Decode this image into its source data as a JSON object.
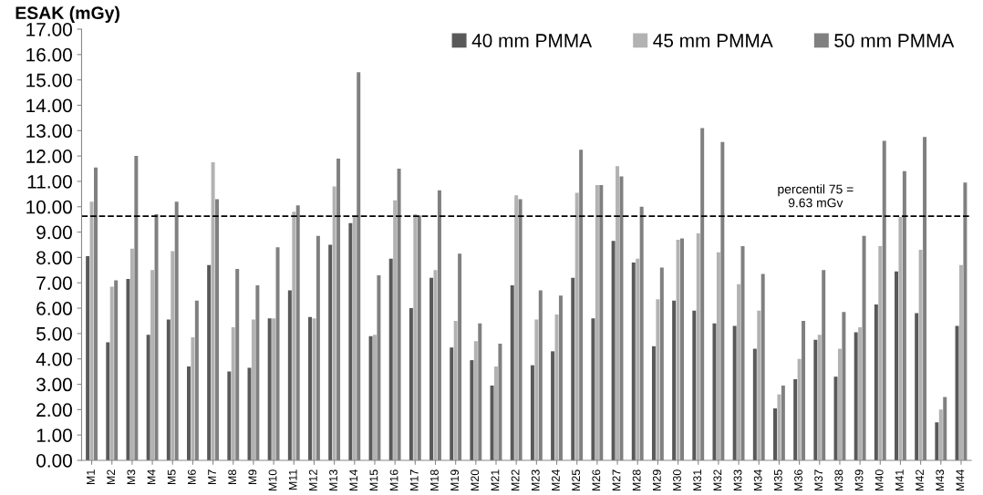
{
  "chart_data": {
    "type": "bar",
    "ylabel": "ESAK (mGy)",
    "categories": [
      "M1",
      "M2",
      "M3",
      "M4",
      "M5",
      "M6",
      "M7",
      "M8",
      "M9",
      "M10",
      "M11",
      "M12",
      "M13",
      "M14",
      "M15",
      "M16",
      "M17",
      "M18",
      "M19",
      "M20",
      "M21",
      "M22",
      "M23",
      "M24",
      "M25",
      "M26",
      "M27",
      "M28",
      "M29",
      "M30",
      "M31",
      "M32",
      "M33",
      "M34",
      "M35",
      "M36",
      "M37",
      "M38",
      "M39",
      "M40",
      "M41",
      "M42",
      "M43",
      "M44"
    ],
    "series": [
      {
        "name": "40 mm PMMA",
        "color": "#595959",
        "values": [
          8.05,
          4.65,
          7.15,
          4.95,
          5.55,
          3.7,
          7.7,
          3.5,
          3.65,
          5.6,
          6.7,
          5.65,
          8.5,
          9.35,
          4.9,
          7.95,
          6.0,
          7.2,
          4.45,
          3.95,
          2.95,
          6.9,
          3.75,
          4.3,
          7.2,
          5.6,
          8.65,
          7.8,
          4.5,
          6.3,
          5.9,
          5.4,
          5.3,
          4.4,
          2.05,
          3.2,
          4.75,
          3.3,
          5.05,
          6.15,
          7.45,
          5.8,
          1.5,
          5.3
        ]
      },
      {
        "name": "45 mm PMMA",
        "color": "#b2b2b2",
        "values": [
          10.2,
          6.85,
          8.35,
          7.5,
          8.25,
          4.85,
          11.75,
          5.25,
          5.55,
          5.6,
          9.8,
          5.6,
          10.8,
          9.6,
          4.95,
          10.25,
          9.7,
          7.5,
          5.5,
          4.7,
          3.7,
          10.45,
          5.55,
          5.75,
          10.55,
          10.85,
          11.6,
          7.95,
          6.35,
          8.7,
          8.95,
          8.2,
          6.95,
          5.9,
          2.6,
          4.0,
          4.95,
          4.4,
          5.25,
          8.45,
          9.6,
          8.3,
          2.0,
          7.7
        ]
      },
      {
        "name": "50 mm PMMA",
        "color": "#808080",
        "values": [
          11.55,
          7.1,
          12.0,
          9.7,
          10.2,
          6.3,
          10.3,
          7.55,
          6.9,
          8.4,
          10.05,
          8.85,
          11.9,
          15.3,
          7.3,
          11.5,
          9.65,
          10.65,
          8.15,
          5.4,
          4.6,
          10.3,
          6.7,
          6.5,
          12.25,
          10.85,
          11.2,
          10.0,
          7.6,
          8.75,
          13.1,
          12.55,
          8.45,
          7.35,
          2.95,
          5.5,
          7.5,
          5.85,
          8.85,
          12.6,
          11.4,
          12.75,
          2.5,
          10.95
        ]
      }
    ],
    "ylim": [
      0,
      17
    ],
    "yticks": [
      {
        "value": 0,
        "label": "0.00"
      },
      {
        "value": 1,
        "label": "1.00"
      },
      {
        "value": 2,
        "label": "2.00"
      },
      {
        "value": 3,
        "label": "3.00"
      },
      {
        "value": 4,
        "label": "4.00"
      },
      {
        "value": 5,
        "label": "5.00"
      },
      {
        "value": 6,
        "label": "6.00"
      },
      {
        "value": 7,
        "label": "7.00"
      },
      {
        "value": 8,
        "label": "8.00"
      },
      {
        "value": 9,
        "label": "9.00"
      },
      {
        "value": 10,
        "label": "10.00"
      },
      {
        "value": 11,
        "label": "11.00"
      },
      {
        "value": 12,
        "label": "12.00"
      },
      {
        "value": 13,
        "label": "13.00"
      },
      {
        "value": 14,
        "label": "14.00"
      },
      {
        "value": 15,
        "label": "15.00"
      },
      {
        "value": 16,
        "label": "16.00"
      },
      {
        "value": 17,
        "label": "17.00"
      }
    ],
    "ref_lines": [
      {
        "axis": "y",
        "value": 9.63,
        "label": "percentil 75 =\n9.63 mGv",
        "color": "#000000",
        "line_style": "dashed"
      }
    ],
    "legend": "top right",
    "grid": false
  }
}
